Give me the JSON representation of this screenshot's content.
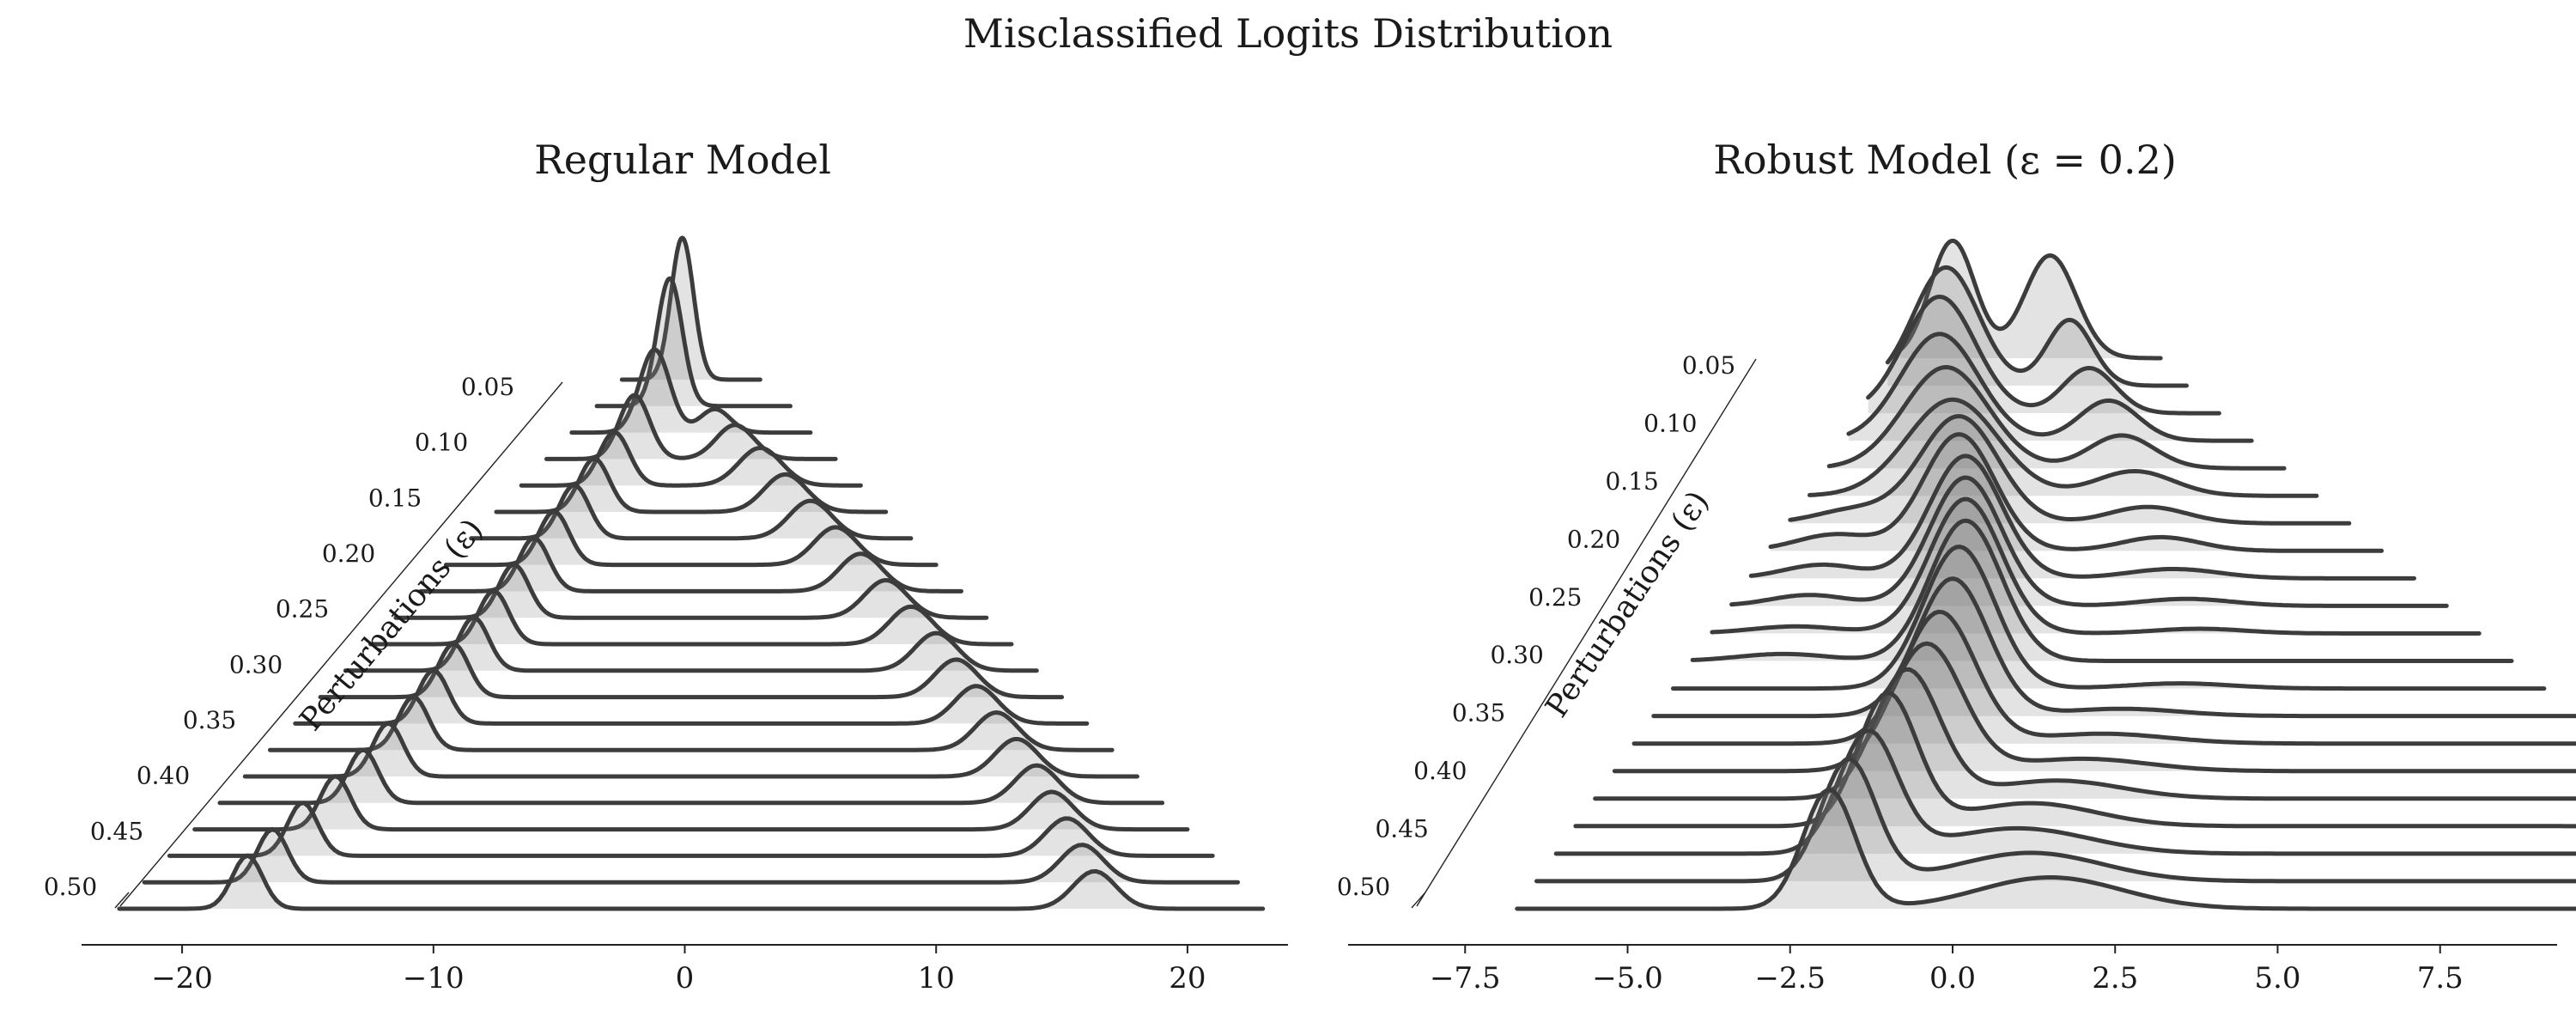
{
  "figure": {
    "suptitle": "Misclassified Logits Distribution",
    "colors": {
      "line": "#3c3c3c",
      "fill": "#808080",
      "axis": "#222222",
      "text": "#1a1a1a"
    }
  },
  "chart_data": [
    {
      "type": "area",
      "subtype": "ridgeline",
      "title": "Regular Model",
      "xlabel": "",
      "xlim": [
        -24,
        24
      ],
      "x_ticks": [
        -20,
        -10,
        0,
        10,
        20
      ],
      "x_tick_labels": [
        "−20",
        "−10",
        "0",
        "10",
        "20"
      ],
      "diagonal_axis_label": "Perturbations (ε)",
      "epsilon_tick_labels": [
        "0.05",
        "0.10",
        "0.15",
        "0.20",
        "0.25",
        "0.30",
        "0.35",
        "0.40",
        "0.45",
        "0.50"
      ],
      "series": [
        {
          "epsilon": 0.0,
          "x_range": [
            -2.5,
            3.0
          ],
          "peaks": [
            {
              "center": -0.1,
              "width": 0.45,
              "weight": 1.0
            }
          ]
        },
        {
          "epsilon": 0.025,
          "x_range": [
            -3.5,
            4.2
          ],
          "peaks": [
            {
              "center": -0.6,
              "width": 0.5,
              "weight": 1.0
            }
          ]
        },
        {
          "epsilon": 0.05,
          "x_range": [
            -4.5,
            5.0
          ],
          "peaks": [
            {
              "center": -1.2,
              "width": 0.6,
              "weight": 0.78
            },
            {
              "center": 1.2,
              "width": 0.6,
              "weight": 0.22
            }
          ]
        },
        {
          "epsilon": 0.075,
          "x_range": [
            -5.5,
            6.0
          ],
          "peaks": [
            {
              "center": -2.0,
              "width": 0.6,
              "weight": 0.6
            },
            {
              "center": 2.0,
              "width": 0.75,
              "weight": 0.4
            }
          ]
        },
        {
          "epsilon": 0.1,
          "x_range": [
            -6.5,
            7.0
          ],
          "peaks": [
            {
              "center": -2.8,
              "width": 0.6,
              "weight": 0.5
            },
            {
              "center": 3.0,
              "width": 0.85,
              "weight": 0.5
            }
          ]
        },
        {
          "epsilon": 0.125,
          "x_range": [
            -7.5,
            8.0
          ],
          "peaks": [
            {
              "center": -3.6,
              "width": 0.6,
              "weight": 0.5
            },
            {
              "center": 4.0,
              "width": 0.85,
              "weight": 0.5
            }
          ]
        },
        {
          "epsilon": 0.15,
          "x_range": [
            -8.5,
            9.0
          ],
          "peaks": [
            {
              "center": -4.4,
              "width": 0.6,
              "weight": 0.5
            },
            {
              "center": 5.0,
              "width": 0.85,
              "weight": 0.5
            }
          ]
        },
        {
          "epsilon": 0.175,
          "x_range": [
            -9.5,
            10.0
          ],
          "peaks": [
            {
              "center": -5.2,
              "width": 0.6,
              "weight": 0.5
            },
            {
              "center": 6.0,
              "width": 0.85,
              "weight": 0.5
            }
          ]
        },
        {
          "epsilon": 0.2,
          "x_range": [
            -10.5,
            11.0
          ],
          "peaks": [
            {
              "center": -6.0,
              "width": 0.6,
              "weight": 0.5
            },
            {
              "center": 7.0,
              "width": 0.85,
              "weight": 0.5
            }
          ]
        },
        {
          "epsilon": 0.225,
          "x_range": [
            -11.5,
            12.0
          ],
          "peaks": [
            {
              "center": -6.8,
              "width": 0.6,
              "weight": 0.5
            },
            {
              "center": 8.0,
              "width": 0.85,
              "weight": 0.5
            }
          ]
        },
        {
          "epsilon": 0.25,
          "x_range": [
            -12.5,
            13.0
          ],
          "peaks": [
            {
              "center": -7.6,
              "width": 0.6,
              "weight": 0.5
            },
            {
              "center": 9.0,
              "width": 0.85,
              "weight": 0.5
            }
          ]
        },
        {
          "epsilon": 0.275,
          "x_range": [
            -13.5,
            14.0
          ],
          "peaks": [
            {
              "center": -8.4,
              "width": 0.6,
              "weight": 0.5
            },
            {
              "center": 10.0,
              "width": 0.85,
              "weight": 0.5
            }
          ]
        },
        {
          "epsilon": 0.3,
          "x_range": [
            -14.5,
            15.0
          ],
          "peaks": [
            {
              "center": -9.2,
              "width": 0.6,
              "weight": 0.5
            },
            {
              "center": 10.8,
              "width": 0.85,
              "weight": 0.5
            }
          ]
        },
        {
          "epsilon": 0.325,
          "x_range": [
            -15.5,
            16.0
          ],
          "peaks": [
            {
              "center": -10.0,
              "width": 0.6,
              "weight": 0.5
            },
            {
              "center": 11.6,
              "width": 0.85,
              "weight": 0.5
            }
          ]
        },
        {
          "epsilon": 0.35,
          "x_range": [
            -16.5,
            17.0
          ],
          "peaks": [
            {
              "center": -10.8,
              "width": 0.6,
              "weight": 0.5
            },
            {
              "center": 12.4,
              "width": 0.85,
              "weight": 0.5
            }
          ]
        },
        {
          "epsilon": 0.375,
          "x_range": [
            -17.5,
            18.0
          ],
          "peaks": [
            {
              "center": -11.8,
              "width": 0.6,
              "weight": 0.5
            },
            {
              "center": 13.2,
              "width": 0.85,
              "weight": 0.5
            }
          ]
        },
        {
          "epsilon": 0.4,
          "x_range": [
            -18.5,
            19.0
          ],
          "peaks": [
            {
              "center": -12.8,
              "width": 0.6,
              "weight": 0.5
            },
            {
              "center": 14.0,
              "width": 0.85,
              "weight": 0.5
            }
          ]
        },
        {
          "epsilon": 0.425,
          "x_range": [
            -19.5,
            20.0
          ],
          "peaks": [
            {
              "center": -13.9,
              "width": 0.6,
              "weight": 0.5
            },
            {
              "center": 14.6,
              "width": 0.85,
              "weight": 0.5
            }
          ]
        },
        {
          "epsilon": 0.45,
          "x_range": [
            -20.5,
            21.0
          ],
          "peaks": [
            {
              "center": -15.2,
              "width": 0.6,
              "weight": 0.5
            },
            {
              "center": 15.2,
              "width": 0.85,
              "weight": 0.5
            }
          ]
        },
        {
          "epsilon": 0.475,
          "x_range": [
            -21.5,
            22.0
          ],
          "peaks": [
            {
              "center": -16.4,
              "width": 0.6,
              "weight": 0.5
            },
            {
              "center": 15.8,
              "width": 0.85,
              "weight": 0.5
            }
          ]
        },
        {
          "epsilon": 0.5,
          "x_range": [
            -22.5,
            23.0
          ],
          "peaks": [
            {
              "center": -17.4,
              "width": 0.6,
              "weight": 0.5
            },
            {
              "center": 16.3,
              "width": 0.85,
              "weight": 0.5
            }
          ]
        }
      ]
    },
    {
      "type": "area",
      "subtype": "ridgeline",
      "title": "Robust Model (ε = 0.2)",
      "xlabel": "",
      "xlim": [
        -9.3,
        9.3
      ],
      "x_ticks": [
        -7.5,
        -5.0,
        -2.5,
        0.0,
        2.5,
        5.0,
        7.5
      ],
      "x_tick_labels": [
        "−7.5",
        "−5.0",
        "−2.5",
        "0.0",
        "2.5",
        "5.0",
        "7.5"
      ],
      "diagonal_axis_label": "Perturbations (ε)",
      "epsilon_tick_labels": [
        "0.05",
        "0.10",
        "0.15",
        "0.20",
        "0.25",
        "0.30",
        "0.35",
        "0.40",
        "0.45",
        "0.50"
      ],
      "series": [
        {
          "epsilon": 0.0,
          "x_range": [
            -0.8,
            3.2
          ],
          "peaks": [
            {
              "center": 0.0,
              "width": 0.35,
              "weight": 0.5
            },
            {
              "center": 1.5,
              "width": 0.4,
              "weight": 0.5
            }
          ]
        },
        {
          "epsilon": 0.025,
          "x_range": [
            -1.0,
            3.6
          ],
          "peaks": [
            {
              "center": -0.1,
              "width": 0.5,
              "weight": 0.72
            },
            {
              "center": 1.8,
              "width": 0.35,
              "weight": 0.28
            }
          ]
        },
        {
          "epsilon": 0.05,
          "x_range": [
            -1.3,
            4.1
          ],
          "peaks": [
            {
              "center": -0.2,
              "width": 0.55,
              "weight": 0.78
            },
            {
              "center": 2.1,
              "width": 0.4,
              "weight": 0.22
            }
          ]
        },
        {
          "epsilon": 0.075,
          "x_range": [
            -1.6,
            4.6
          ],
          "peaks": [
            {
              "center": -0.2,
              "width": 0.6,
              "weight": 0.78
            },
            {
              "center": 2.4,
              "width": 0.45,
              "weight": 0.22
            }
          ]
        },
        {
          "epsilon": 0.1,
          "x_range": [
            -1.9,
            5.1
          ],
          "peaks": [
            {
              "center": -0.1,
              "width": 0.65,
              "weight": 0.8
            },
            {
              "center": 2.6,
              "width": 0.5,
              "weight": 0.2
            }
          ]
        },
        {
          "epsilon": 0.125,
          "x_range": [
            -2.2,
            5.6
          ],
          "peaks": [
            {
              "center": 0.0,
              "width": 0.7,
              "weight": 0.82
            },
            {
              "center": 2.8,
              "width": 0.6,
              "weight": 0.18
            }
          ]
        },
        {
          "epsilon": 0.15,
          "x_range": [
            -2.5,
            6.1
          ],
          "peaks": [
            {
              "center": 0.1,
              "width": 0.6,
              "weight": 0.78
            },
            {
              "center": -1.5,
              "width": 0.6,
              "weight": 0.1
            },
            {
              "center": 3.0,
              "width": 0.6,
              "weight": 0.12
            }
          ]
        },
        {
          "epsilon": 0.175,
          "x_range": [
            -2.8,
            6.6
          ],
          "peaks": [
            {
              "center": 0.1,
              "width": 0.55,
              "weight": 0.78
            },
            {
              "center": -1.8,
              "width": 0.6,
              "weight": 0.12
            },
            {
              "center": 3.2,
              "width": 0.6,
              "weight": 0.1
            }
          ]
        },
        {
          "epsilon": 0.2,
          "x_range": [
            -3.1,
            7.1
          ],
          "peaks": [
            {
              "center": 0.2,
              "width": 0.55,
              "weight": 0.82
            },
            {
              "center": -2.0,
              "width": 0.6,
              "weight": 0.1
            },
            {
              "center": 3.4,
              "width": 0.7,
              "weight": 0.08
            }
          ]
        },
        {
          "epsilon": 0.225,
          "x_range": [
            -3.4,
            7.6
          ],
          "peaks": [
            {
              "center": 0.2,
              "width": 0.55,
              "weight": 0.86
            },
            {
              "center": -2.2,
              "width": 0.6,
              "weight": 0.08
            },
            {
              "center": 3.6,
              "width": 0.7,
              "weight": 0.06
            }
          ]
        },
        {
          "epsilon": 0.25,
          "x_range": [
            -3.7,
            8.1
          ],
          "peaks": [
            {
              "center": 0.2,
              "width": 0.55,
              "weight": 0.9
            },
            {
              "center": -2.4,
              "width": 0.7,
              "weight": 0.06
            },
            {
              "center": 3.8,
              "width": 0.7,
              "weight": 0.04
            }
          ]
        },
        {
          "epsilon": 0.275,
          "x_range": [
            -4.0,
            8.6
          ],
          "peaks": [
            {
              "center": 0.2,
              "width": 0.55,
              "weight": 0.94
            },
            {
              "center": -2.6,
              "width": 0.7,
              "weight": 0.06
            }
          ]
        },
        {
          "epsilon": 0.3,
          "x_range": [
            -4.3,
            9.1
          ],
          "peaks": [
            {
              "center": 0.1,
              "width": 0.55,
              "weight": 0.95
            },
            {
              "center": 3.5,
              "width": 0.8,
              "weight": 0.05
            }
          ]
        },
        {
          "epsilon": 0.325,
          "x_range": [
            -4.6,
            9.6
          ],
          "peaks": [
            {
              "center": 0.0,
              "width": 0.55,
              "weight": 0.92
            },
            {
              "center": 2.6,
              "width": 0.9,
              "weight": 0.08
            }
          ]
        },
        {
          "epsilon": 0.35,
          "x_range": [
            -4.9,
            10.1
          ],
          "peaks": [
            {
              "center": -0.2,
              "width": 0.55,
              "weight": 0.88
            },
            {
              "center": 2.3,
              "width": 1.0,
              "weight": 0.12
            }
          ]
        },
        {
          "epsilon": 0.375,
          "x_range": [
            -5.2,
            10.6
          ],
          "peaks": [
            {
              "center": -0.4,
              "width": 0.55,
              "weight": 0.85
            },
            {
              "center": 2.0,
              "width": 1.0,
              "weight": 0.15
            }
          ]
        },
        {
          "epsilon": 0.4,
          "x_range": [
            -5.5,
            11.1
          ],
          "peaks": [
            {
              "center": -0.7,
              "width": 0.5,
              "weight": 0.78
            },
            {
              "center": 1.6,
              "width": 1.0,
              "weight": 0.22
            }
          ]
        },
        {
          "epsilon": 0.425,
          "x_range": [
            -5.8,
            11.6
          ],
          "peaks": [
            {
              "center": -1.0,
              "width": 0.45,
              "weight": 0.72
            },
            {
              "center": 1.2,
              "width": 1.0,
              "weight": 0.28
            }
          ]
        },
        {
          "epsilon": 0.45,
          "x_range": [
            -6.1,
            12.1
          ],
          "peaks": [
            {
              "center": -1.3,
              "width": 0.45,
              "weight": 0.66
            },
            {
              "center": 1.0,
              "width": 1.1,
              "weight": 0.34
            }
          ]
        },
        {
          "epsilon": 0.475,
          "x_range": [
            -6.4,
            12.6
          ],
          "peaks": [
            {
              "center": -1.6,
              "width": 0.42,
              "weight": 0.62
            },
            {
              "center": 1.2,
              "width": 1.1,
              "weight": 0.38
            }
          ]
        },
        {
          "epsilon": 0.5,
          "x_range": [
            -6.7,
            13.1
          ],
          "peaks": [
            {
              "center": -1.9,
              "width": 0.4,
              "weight": 0.58
            },
            {
              "center": 1.5,
              "width": 1.1,
              "weight": 0.42
            }
          ]
        }
      ]
    }
  ]
}
